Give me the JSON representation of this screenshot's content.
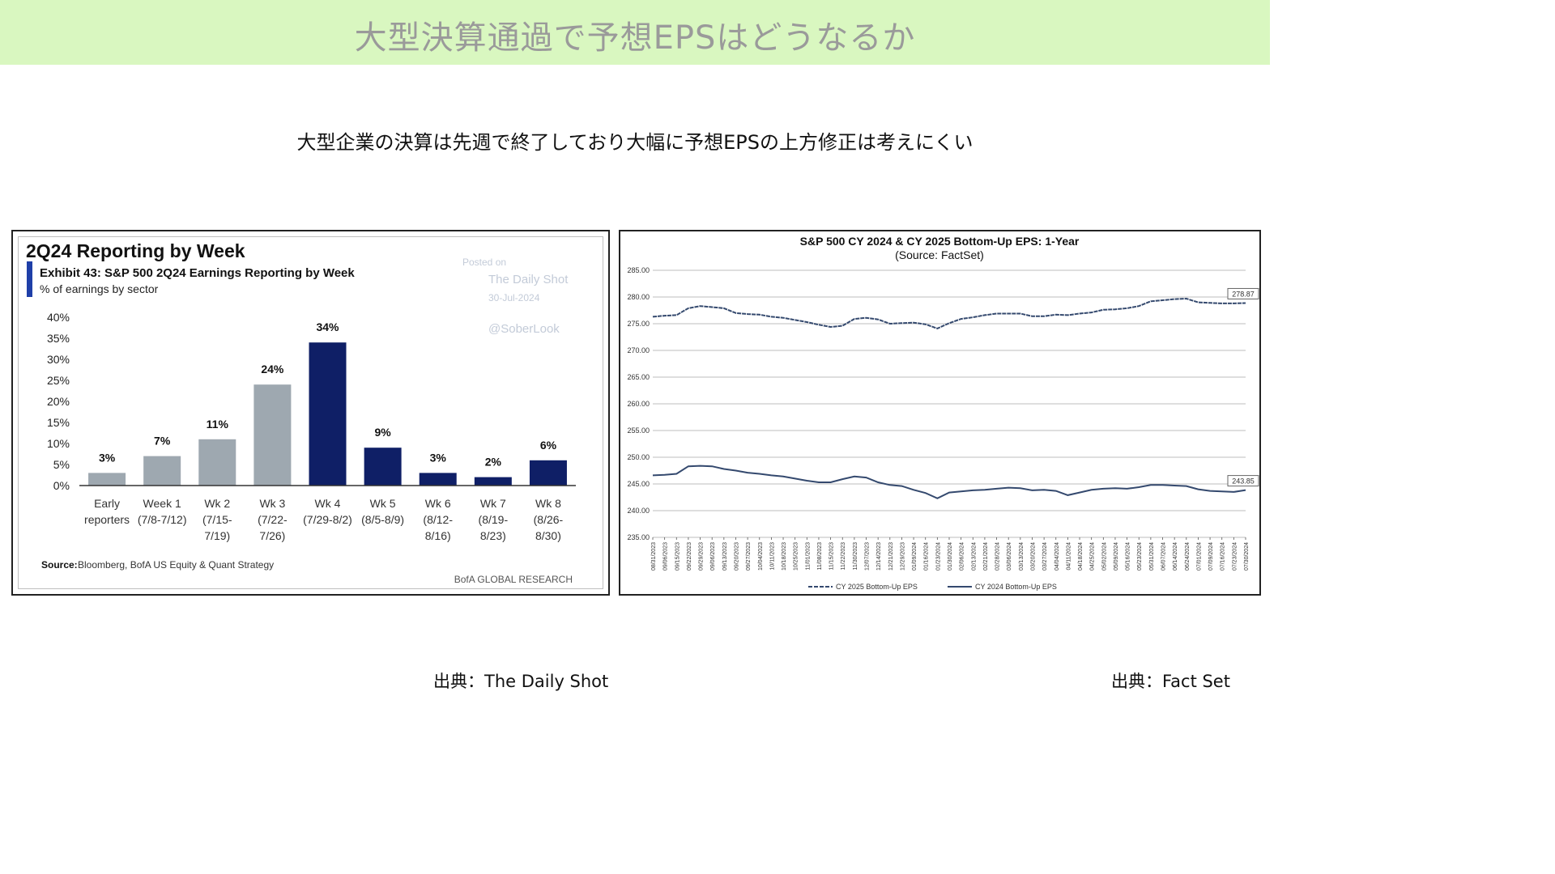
{
  "page": {
    "title": "大型決算通過で予想EPSはどうなるか",
    "subtitle": "大型企業の決算は先週で終了しており大幅に予想EPSの上方修正は考えにくい",
    "source_left": "出典：The Daily Shot",
    "source_right": "出典：Fact Set"
  },
  "left_chart": {
    "heading": "2Q24 Reporting by Week",
    "exhibit": "Exhibit 43: S&P 500 2Q24 Earnings Reporting by Week",
    "subheading": "% of earnings by sector",
    "watermark": {
      "posted_on": "Posted on",
      "site": "The Daily Shot",
      "date": "30-Jul-2024",
      "handle": "@SoberLook"
    },
    "source_label": "Source:",
    "source_text": "Bloomberg, BofA US Equity & Quant Strategy",
    "footer_brand": "BofA GLOBAL RESEARCH",
    "accent_color": "#1f3fa8"
  },
  "right_chart": {
    "title": "S&P 500 CY 2024 & CY 2025 Bottom-Up  EPS: 1-Year",
    "subtitle": "(Source: FactSet)",
    "legend": [
      "CY 2025 Bottom-Up EPS",
      "CY 2024 Bottom-Up EPS"
    ],
    "end_labels": [
      "278.87",
      "243.85"
    ]
  },
  "chart_data": [
    {
      "type": "bar",
      "title": "2Q24 Reporting by Week",
      "categories": [
        [
          "Early",
          "reporters"
        ],
        [
          "Week 1",
          "(7/8-7/12)"
        ],
        [
          "Wk 2",
          "(7/15-",
          "7/19)"
        ],
        [
          "Wk 3",
          "(7/22-",
          "7/26)"
        ],
        [
          "Wk 4",
          "(7/29-8/2)"
        ],
        [
          "Wk 5",
          "(8/5-8/9)"
        ],
        [
          "Wk 6",
          "(8/12-",
          "8/16)"
        ],
        [
          "Wk 7",
          "(8/19-",
          "8/23)"
        ],
        [
          "Wk 8",
          "(8/26-",
          "8/30)"
        ]
      ],
      "values": [
        3,
        7,
        11,
        24,
        34,
        9,
        3,
        2,
        6
      ],
      "value_labels": [
        "3%",
        "7%",
        "11%",
        "24%",
        "34%",
        "9%",
        "3%",
        "2%",
        "6%"
      ],
      "reported": [
        true,
        true,
        true,
        true,
        false,
        false,
        false,
        false,
        false
      ],
      "colors": {
        "reported": "#9ea8b0",
        "upcoming": "#0f1f66"
      },
      "ylim": [
        0,
        40
      ],
      "yticks": [
        "0%",
        "5%",
        "10%",
        "15%",
        "20%",
        "25%",
        "30%",
        "35%",
        "40%"
      ],
      "grid": false
    },
    {
      "type": "line",
      "title": "S&P 500 CY 2024 & CY 2025 Bottom-Up  EPS: 1-Year",
      "ylim": [
        235,
        285
      ],
      "yticks": [
        "235.00",
        "240.00",
        "245.00",
        "250.00",
        "255.00",
        "260.00",
        "265.00",
        "270.00",
        "275.00",
        "280.00",
        "285.00"
      ],
      "x": [
        "08/31/2023",
        "09/06/2023",
        "09/15/2023",
        "09/22/2023",
        "09/29/2023",
        "09/06/2023",
        "09/13/2023",
        "09/20/2023",
        "09/27/2023",
        "10/04/2023",
        "10/11/2023",
        "10/18/2023",
        "10/25/2023",
        "11/01/2023",
        "11/08/2023",
        "11/15/2023",
        "11/22/2023",
        "11/30/2023",
        "12/07/2023",
        "12/14/2023",
        "12/21/2023",
        "12/29/2023",
        "01/09/2024",
        "01/16/2024",
        "01/23/2024",
        "01/30/2024",
        "02/06/2024",
        "02/13/2024",
        "02/21/2024",
        "02/28/2024",
        "03/06/2024",
        "03/13/2024",
        "03/20/2024",
        "03/27/2024",
        "04/04/2024",
        "04/11/2024",
        "04/18/2024",
        "04/25/2024",
        "05/02/2024",
        "05/09/2024",
        "05/16/2024",
        "05/23/2024",
        "05/31/2024",
        "06/07/2024",
        "06/14/2024",
        "06/24/2024",
        "07/01/2024",
        "07/09/2024",
        "07/16/2024",
        "07/23/2024",
        "07/30/2024"
      ],
      "series": [
        {
          "name": "CY 2025 Bottom-Up EPS",
          "style": "dashed",
          "values": [
            276.3,
            276.5,
            276.6,
            277.9,
            278.3,
            278.1,
            277.9,
            277.0,
            276.8,
            276.7,
            276.3,
            276.1,
            275.7,
            275.3,
            274.8,
            274.4,
            274.6,
            275.9,
            276.1,
            275.8,
            275.0,
            275.1,
            275.2,
            274.9,
            274.1,
            275.1,
            275.9,
            276.2,
            276.6,
            276.9,
            276.9,
            276.9,
            276.4,
            276.4,
            276.7,
            276.6,
            276.9,
            277.1,
            277.6,
            277.7,
            277.9,
            278.3,
            279.2,
            279.4,
            279.6,
            279.7,
            279.0,
            278.9,
            278.8,
            278.8,
            278.87
          ]
        },
        {
          "name": "CY 2024 Bottom-Up EPS",
          "style": "solid",
          "values": [
            246.6,
            246.7,
            246.9,
            248.3,
            248.4,
            248.3,
            247.8,
            247.5,
            247.1,
            246.9,
            246.6,
            246.4,
            246.0,
            245.6,
            245.3,
            245.3,
            245.9,
            246.4,
            246.2,
            245.3,
            244.8,
            244.6,
            243.9,
            243.3,
            242.3,
            243.4,
            243.6,
            243.8,
            243.9,
            244.1,
            244.3,
            244.2,
            243.8,
            243.9,
            243.7,
            242.9,
            243.4,
            243.9,
            244.1,
            244.2,
            244.1,
            244.4,
            244.8,
            244.8,
            244.7,
            244.6,
            244.0,
            243.7,
            243.6,
            243.5,
            243.85
          ]
        }
      ],
      "grid": true,
      "legend": "bottom"
    }
  ]
}
